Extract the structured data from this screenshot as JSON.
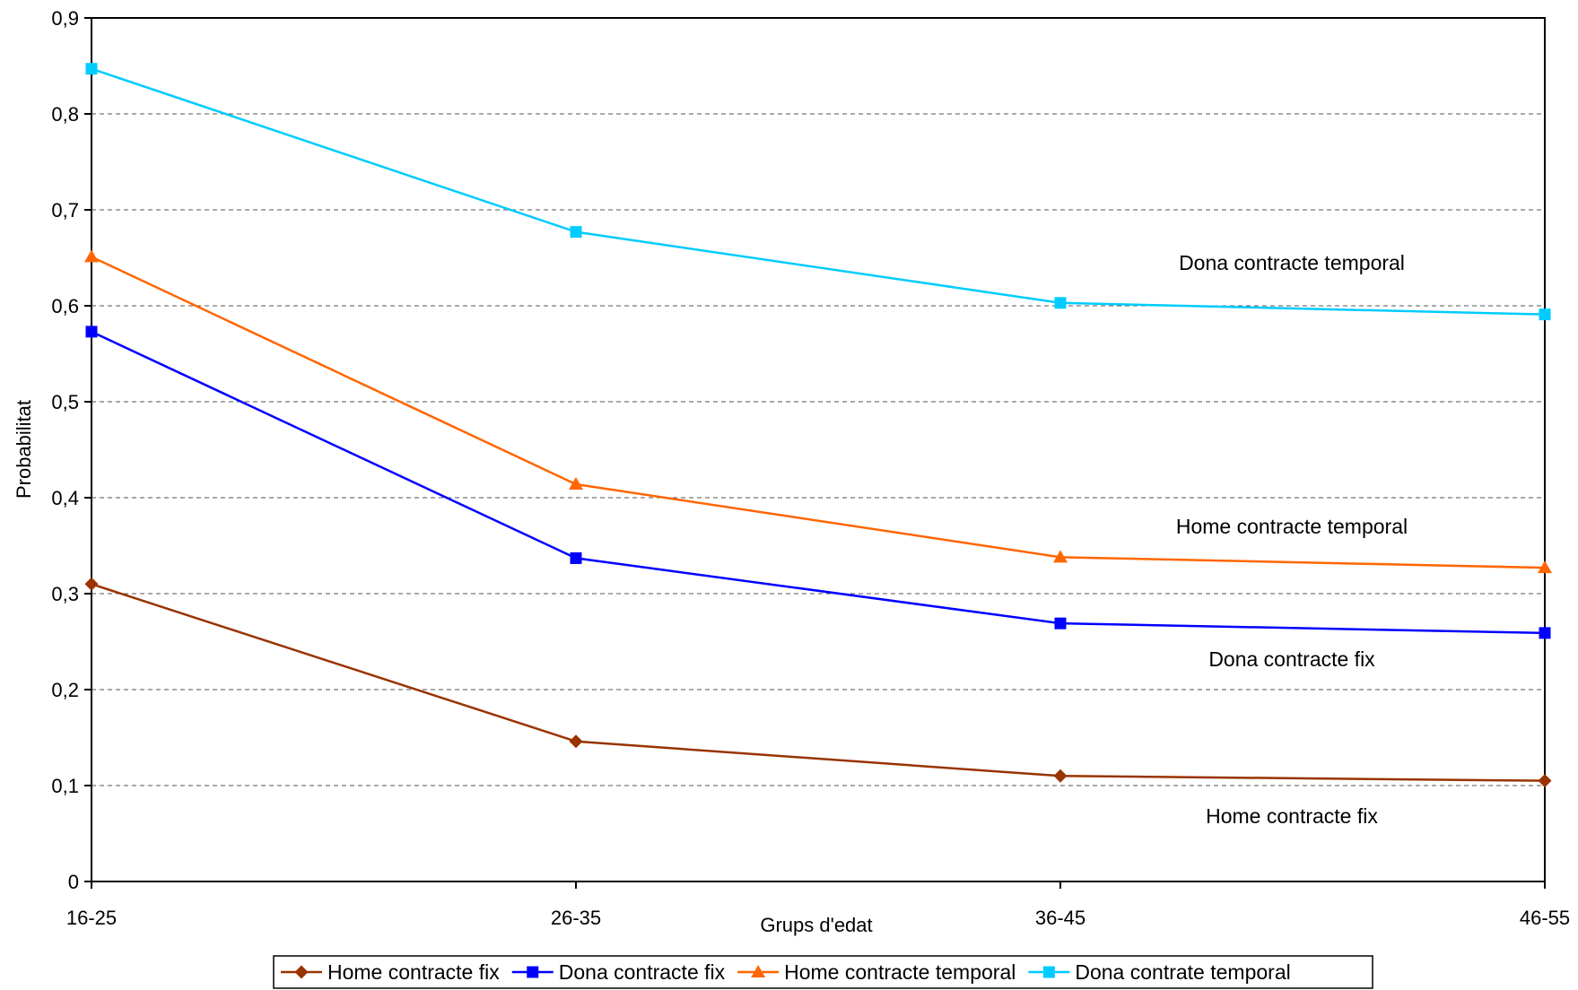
{
  "chart_data": {
    "type": "line",
    "categories": [
      "16-25",
      "26-35",
      "36-45",
      "46-55"
    ],
    "series": [
      {
        "name": "Home contracte fix",
        "color": "#993300",
        "marker": "diamond",
        "values": [
          0.31,
          0.146,
          0.11,
          0.105
        ]
      },
      {
        "name": "Dona contracte fix",
        "color": "#0000ff",
        "marker": "square",
        "values": [
          0.573,
          0.337,
          0.269,
          0.259
        ]
      },
      {
        "name": "Home contracte temporal",
        "color": "#ff6600",
        "marker": "triangle",
        "values": [
          0.651,
          0.414,
          0.338,
          0.327
        ]
      },
      {
        "name": "Dona contrate temporal",
        "color": "#00ccff",
        "marker": "square",
        "values": [
          0.847,
          0.677,
          0.603,
          0.591
        ]
      }
    ],
    "title": "",
    "xlabel": "Grups d'edat",
    "ylabel": "Probabilitat",
    "ylim": [
      0,
      0.9
    ],
    "yticks": [
      "0",
      "0,1",
      "0,2",
      "0,3",
      "0,4",
      "0,5",
      "0,6",
      "0,7",
      "0,8",
      "0,9"
    ],
    "grid": "horizontal-dashed",
    "legend": "bottom",
    "annotations": [
      {
        "text": "Dona contracte temporal",
        "x": "46-55",
        "y": 0.645
      },
      {
        "text": "Home contracte temporal",
        "x": "46-55",
        "y": 0.37
      },
      {
        "text": "Dona contracte fix",
        "x": "46-55",
        "y": 0.232
      },
      {
        "text": "Home contracte fix",
        "x": "46-55",
        "y": 0.068
      }
    ]
  }
}
